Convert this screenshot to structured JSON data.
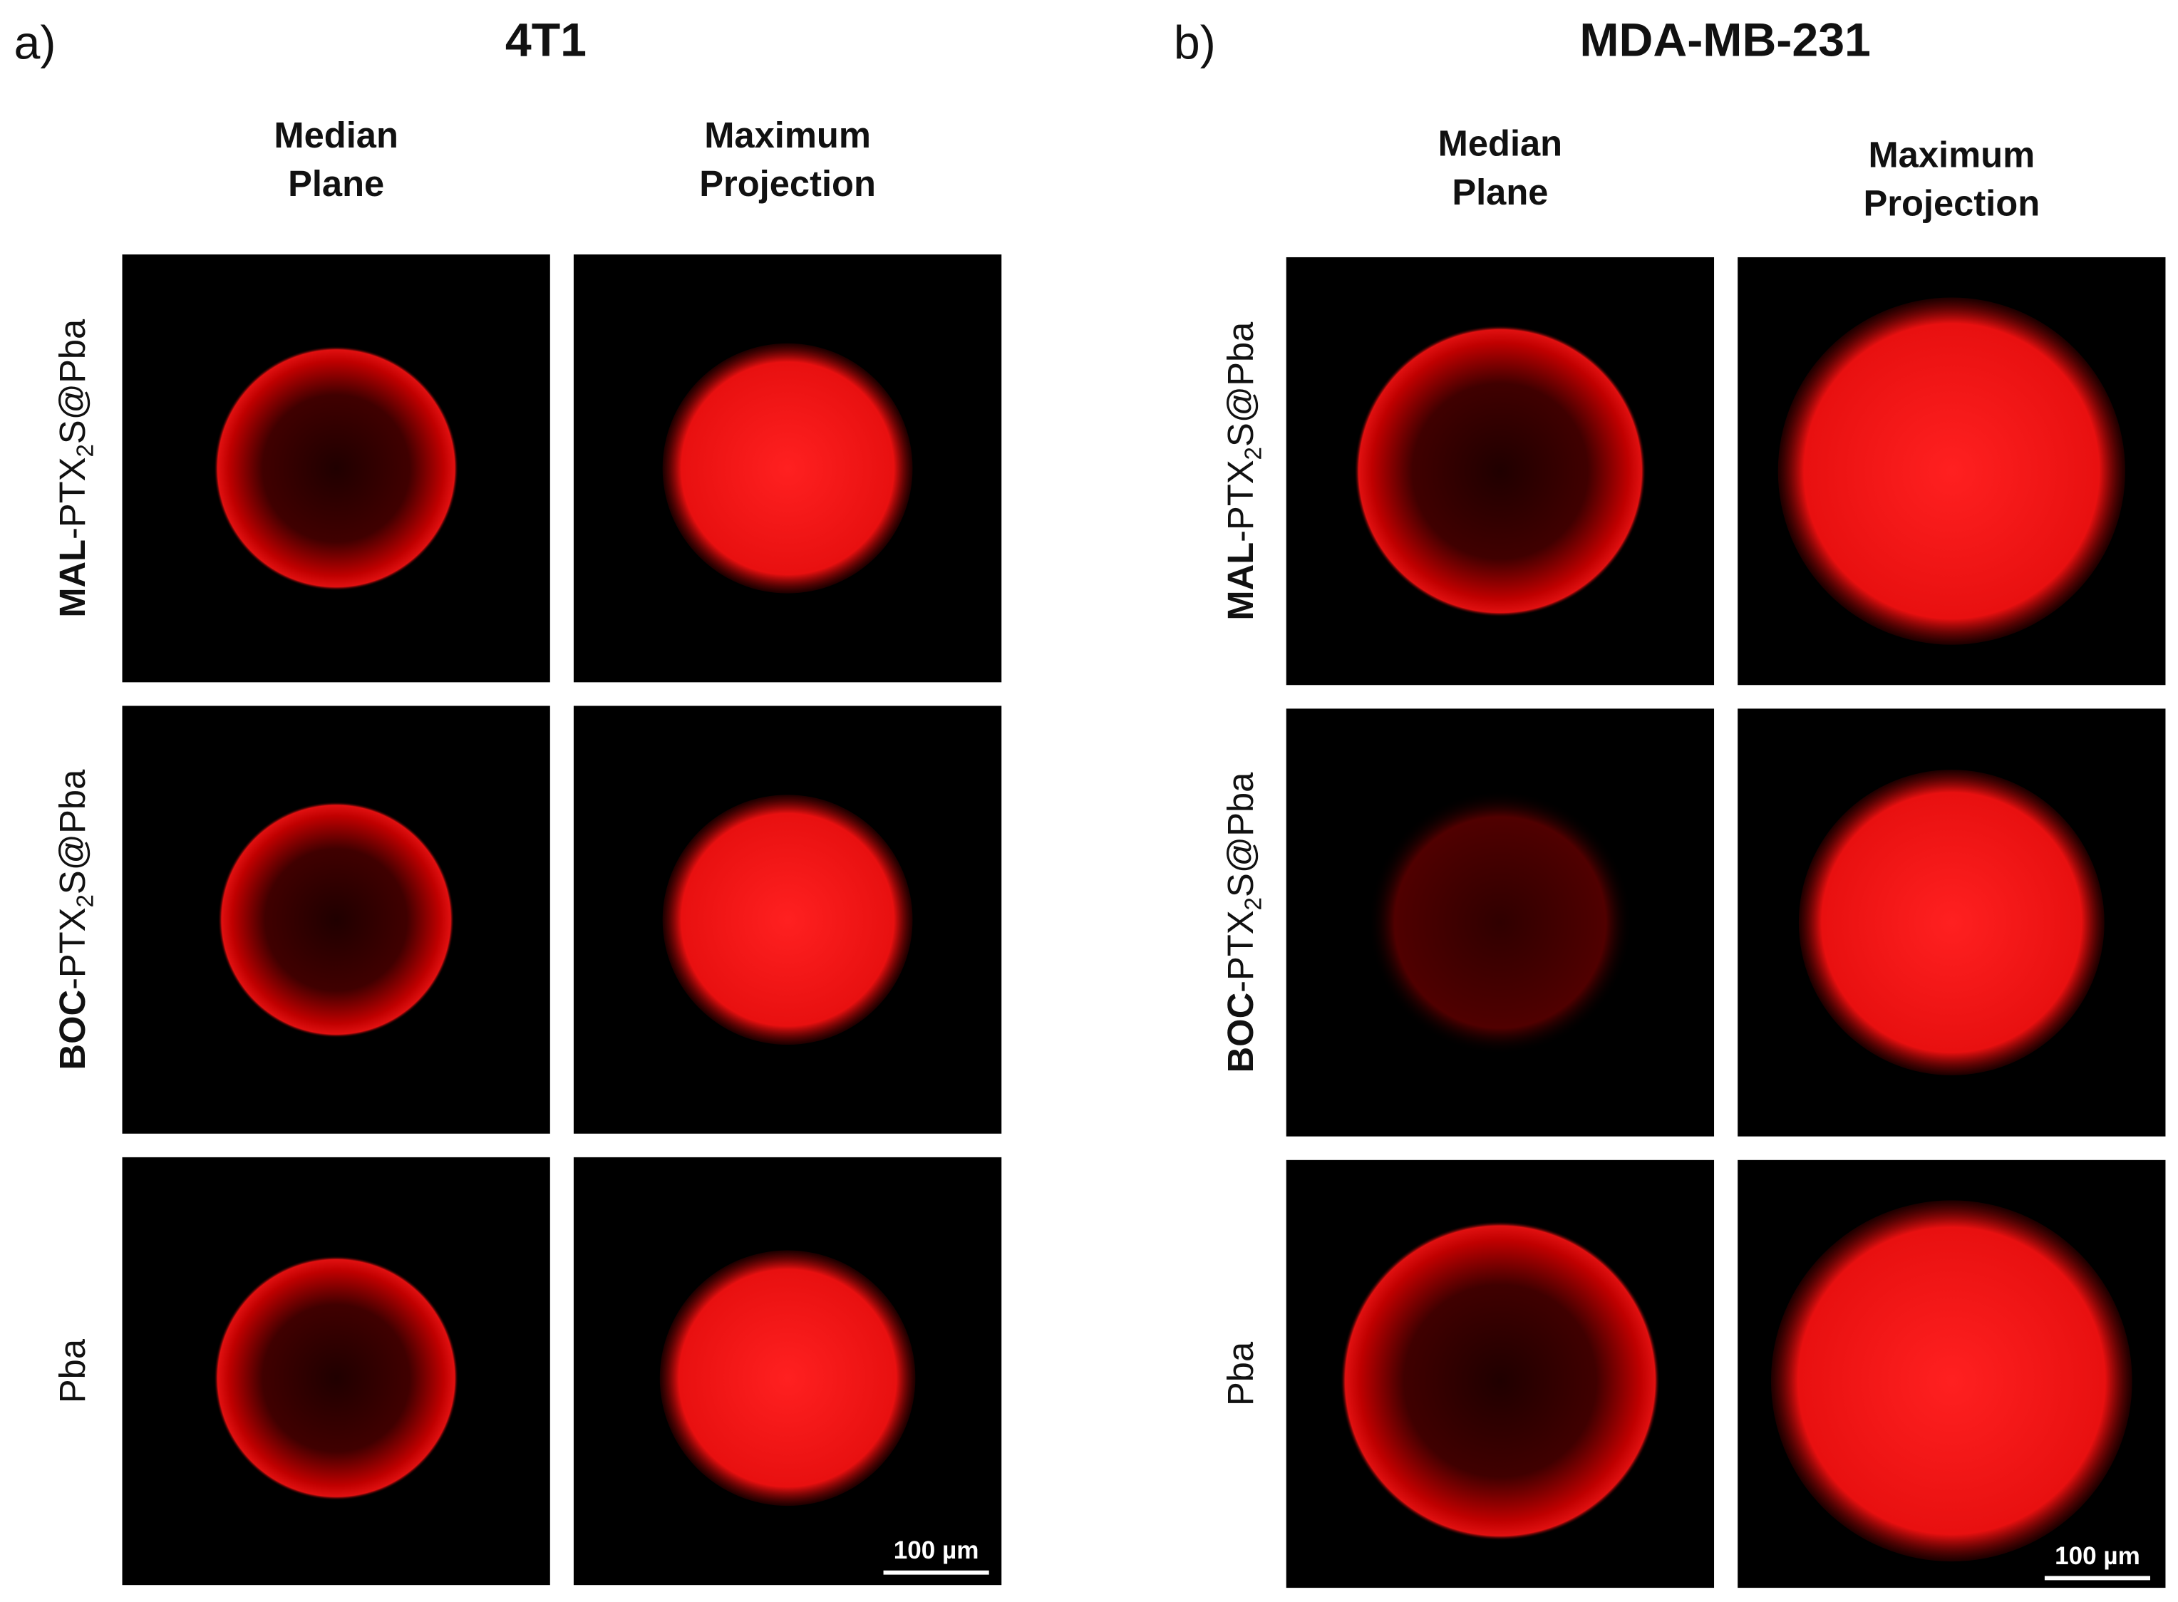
{
  "panels": [
    {
      "letter": "a)",
      "title": "4T1",
      "columns": [
        {
          "lines": [
            "Median",
            "Plane"
          ]
        },
        {
          "lines": [
            "Maximum",
            "Projection"
          ]
        }
      ],
      "rows": [
        {
          "bold": "MAL",
          "text": "-PTX",
          "sub": "2",
          "tail": "S@Pba"
        },
        {
          "bold": "BOC",
          "text": "-PTX",
          "sub": "2",
          "tail": "S@Pba"
        },
        {
          "text": "Pba"
        }
      ],
      "scale_bar": "100 µm"
    },
    {
      "letter": "b)",
      "title": "MDA-MB-231",
      "columns": [
        {
          "lines": [
            "Median",
            "Plane"
          ]
        },
        {
          "lines": [
            "Maximum",
            "Projection"
          ]
        }
      ],
      "rows": [
        {
          "bold": "MAL",
          "text": "-PTX",
          "sub": "2",
          "tail": "S@Pba"
        },
        {
          "bold": "BOC",
          "text": "-PTX",
          "sub": "2",
          "tail": "S@Pba"
        },
        {
          "text": "Pba"
        }
      ],
      "scale_bar": "100 µm"
    }
  ]
}
